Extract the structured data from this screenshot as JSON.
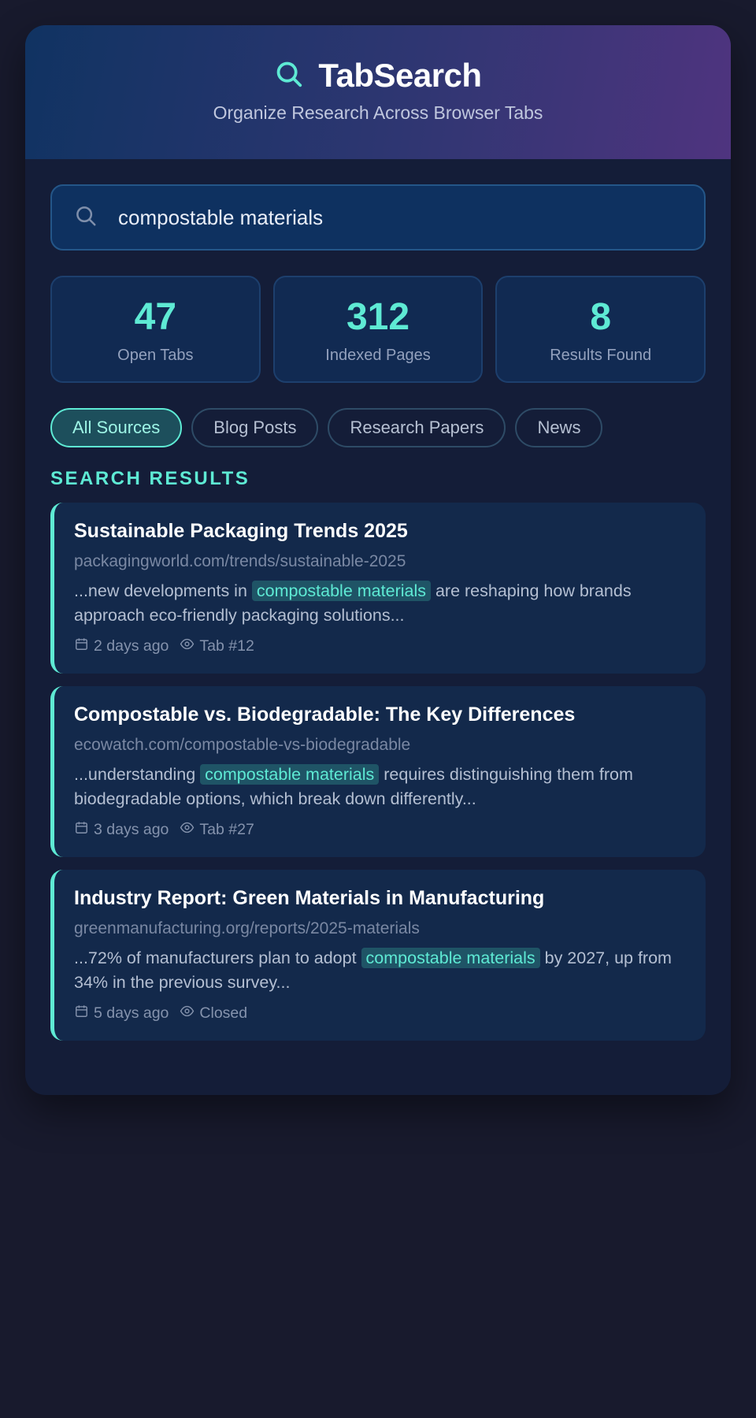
{
  "app": {
    "title": "TabSearch",
    "subtitle": "Organize Research Across Browser Tabs",
    "logo_icon": "search-icon"
  },
  "search": {
    "value": "compostable materials",
    "icon": "search-icon"
  },
  "stats": [
    {
      "value": "47",
      "label": "Open Tabs"
    },
    {
      "value": "312",
      "label": "Indexed Pages"
    },
    {
      "value": "8",
      "label": "Results Found"
    }
  ],
  "filters": [
    {
      "label": "All Sources",
      "active": true
    },
    {
      "label": "Blog Posts",
      "active": false
    },
    {
      "label": "Research Papers",
      "active": false
    },
    {
      "label": "News",
      "active": false
    }
  ],
  "results_heading": "SEARCH RESULTS",
  "results": [
    {
      "title": "Sustainable Packaging Trends 2025",
      "url": "packagingworld.com/trends/sustainable-2025",
      "snippet_before": "...new developments in ",
      "snippet_highlight": "compostable materials",
      "snippet_after": " are reshaping how brands approach eco-friendly packaging solutions...",
      "date": "2 days ago",
      "tab_status": "Tab #12"
    },
    {
      "title": "Compostable vs. Biodegradable: The Key Differences",
      "url": "ecowatch.com/compostable-vs-biodegradable",
      "snippet_before": "...understanding ",
      "snippet_highlight": "compostable materials",
      "snippet_after": " requires distinguishing them from biodegradable options, which break down differently...",
      "date": "3 days ago",
      "tab_status": "Tab #27"
    },
    {
      "title": "Industry Report: Green Materials in Manufacturing",
      "url": "greenmanufacturing.org/reports/2025-materials",
      "snippet_before": "...72% of manufacturers plan to adopt ",
      "snippet_highlight": "compostable materials",
      "snippet_after": " by 2027, up from 34% in the previous survey...",
      "date": "5 days ago",
      "tab_status": "Closed"
    }
  ],
  "colors": {
    "accent": "#5eead4",
    "background": "#181a2d",
    "panel": "#141d38",
    "card": "#13294b"
  }
}
